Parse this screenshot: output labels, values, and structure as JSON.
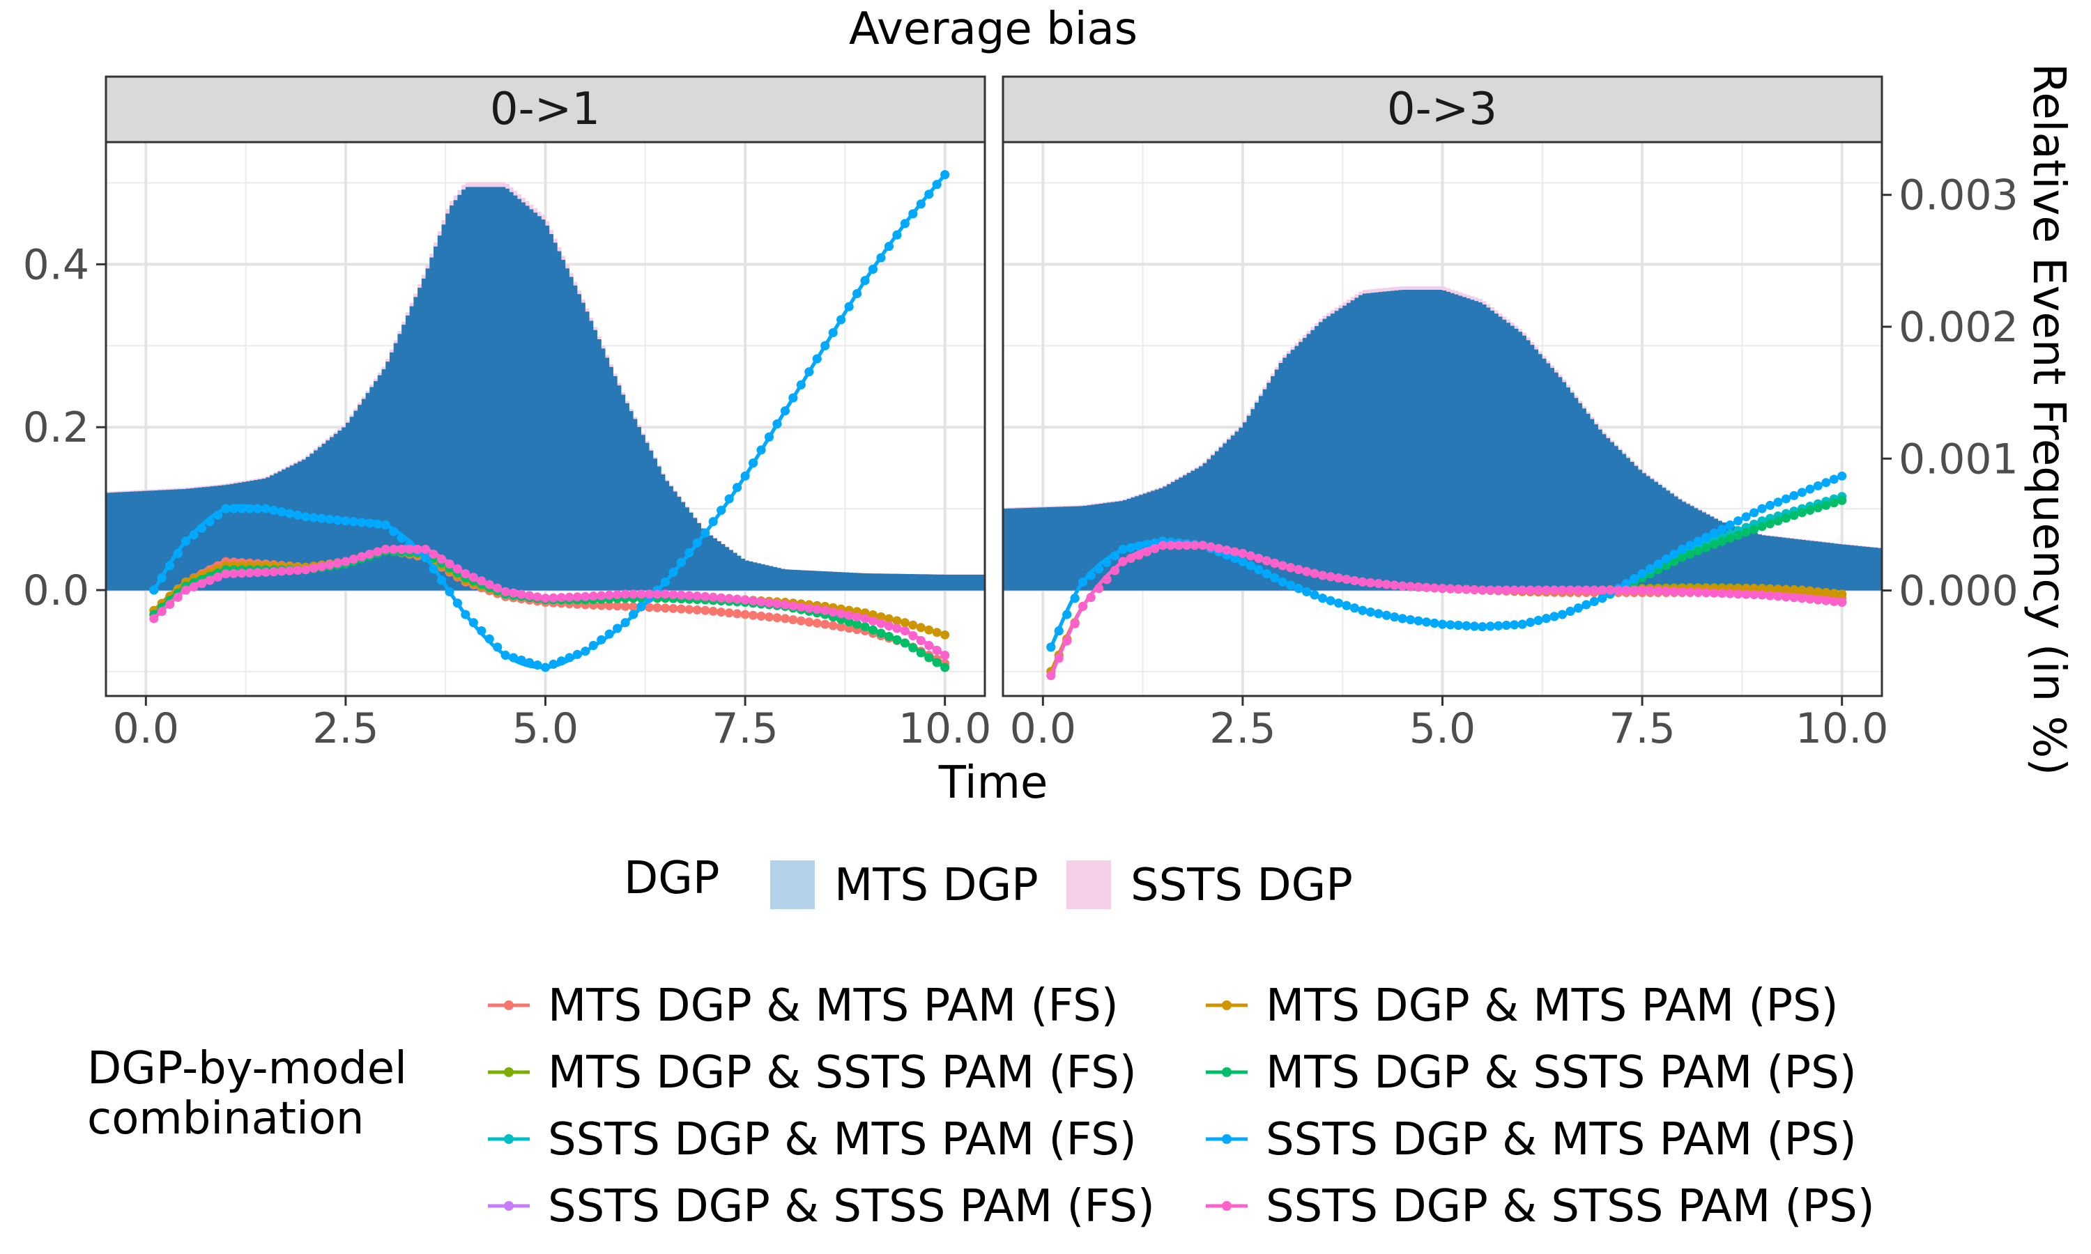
{
  "chart_data": {
    "type": "line",
    "title": "Average bias",
    "xlabel": "Time",
    "ylabel": "",
    "y2label": "Relative Event Frequency (in %)",
    "xlim": [
      -0.5,
      10.5
    ],
    "ylim": [
      -0.13,
      0.55
    ],
    "y2lim": [
      -0.0008,
      0.0034
    ],
    "x_ticks": [
      "0.0",
      "2.5",
      "5.0",
      "7.5",
      "10.0"
    ],
    "y_ticks": [
      "0.0",
      "0.2",
      "0.4"
    ],
    "y2_ticks": [
      "0.000",
      "0.001",
      "0.002",
      "0.003"
    ],
    "grid": true,
    "legend_position": "bottom",
    "x": [
      0.1,
      0.5,
      1.0,
      1.5,
      2.0,
      2.5,
      3.0,
      3.5,
      4.0,
      4.5,
      5.0,
      5.5,
      6.0,
      6.5,
      7.0,
      7.5,
      8.0,
      8.5,
      9.0,
      9.5,
      10.0
    ],
    "dgp_legend": {
      "title": "DGP",
      "items": [
        {
          "name": "MTS DGP",
          "color": "#2878b5"
        },
        {
          "name": "SSTS DGP",
          "color": "#f5cfe8"
        }
      ]
    },
    "series_legend": {
      "title_line1": "DGP-by-model",
      "title_line2": "combination"
    },
    "panels": [
      {
        "label": "0->1",
        "histogram": {
          "x": [
            -0.5,
            0.5,
            1.0,
            1.5,
            2.0,
            2.5,
            3.0,
            3.5,
            3.8,
            4.0,
            4.5,
            5.0,
            5.5,
            6.0,
            6.5,
            7.0,
            7.5,
            8.0,
            9.0,
            10.0,
            10.5
          ],
          "freq": [
            0.00074,
            0.00077,
            0.0008,
            0.00085,
            0.001,
            0.00125,
            0.0017,
            0.0024,
            0.0029,
            0.00306,
            0.00306,
            0.0028,
            0.00215,
            0.00145,
            0.00085,
            0.00045,
            0.00023,
            0.00016,
            0.00013,
            0.00012,
            0.00012
          ]
        },
        "series": [
          {
            "name": "MTS DGP & MTS PAM (FS)",
            "color": "#f8766d",
            "values": [
              -0.025,
              0.01,
              0.035,
              0.032,
              0.028,
              0.035,
              0.05,
              0.04,
              0.01,
              -0.008,
              -0.015,
              -0.018,
              -0.02,
              -0.022,
              -0.025,
              -0.03,
              -0.035,
              -0.042,
              -0.05,
              -0.065,
              -0.09
            ]
          },
          {
            "name": "MTS DGP & SSTS PAM (FS)",
            "color": "#7cae00",
            "values": [
              -0.03,
              0.005,
              0.025,
              0.025,
              0.025,
              0.032,
              0.048,
              0.045,
              0.015,
              -0.005,
              -0.012,
              -0.012,
              -0.01,
              -0.01,
              -0.012,
              -0.015,
              -0.02,
              -0.03,
              -0.045,
              -0.065,
              -0.095
            ]
          },
          {
            "name": "SSTS DGP & MTS PAM (FS)",
            "color": "#00bfc4",
            "values": [
              0.0,
              0.06,
              0.1,
              0.1,
              0.09,
              0.085,
              0.08,
              0.04,
              -0.03,
              -0.08,
              -0.095,
              -0.075,
              -0.04,
              0.01,
              0.07,
              0.14,
              0.22,
              0.3,
              0.38,
              0.45,
              0.51
            ]
          },
          {
            "name": "SSTS DGP & STSS PAM (FS)",
            "color": "#c77cff",
            "values": [
              -0.035,
              0.0,
              0.02,
              0.022,
              0.025,
              0.035,
              0.05,
              0.05,
              0.02,
              -0.002,
              -0.01,
              -0.008,
              -0.005,
              -0.005,
              -0.008,
              -0.012,
              -0.018,
              -0.025,
              -0.035,
              -0.05,
              -0.08
            ]
          },
          {
            "name": "MTS DGP & MTS PAM (PS)",
            "color": "#cd9600",
            "values": [
              -0.025,
              0.01,
              0.03,
              0.03,
              0.028,
              0.035,
              0.05,
              0.042,
              0.012,
              -0.005,
              -0.012,
              -0.012,
              -0.01,
              -0.01,
              -0.01,
              -0.012,
              -0.015,
              -0.02,
              -0.028,
              -0.04,
              -0.055
            ]
          },
          {
            "name": "MTS DGP & SSTS PAM (PS)",
            "color": "#00be67",
            "values": [
              -0.03,
              0.005,
              0.025,
              0.025,
              0.025,
              0.032,
              0.048,
              0.045,
              0.015,
              -0.005,
              -0.012,
              -0.012,
              -0.01,
              -0.01,
              -0.012,
              -0.015,
              -0.02,
              -0.03,
              -0.045,
              -0.065,
              -0.095
            ]
          },
          {
            "name": "SSTS DGP & MTS PAM (PS)",
            "color": "#00a9ff",
            "values": [
              0.0,
              0.06,
              0.1,
              0.1,
              0.09,
              0.085,
              0.08,
              0.04,
              -0.03,
              -0.08,
              -0.095,
              -0.075,
              -0.04,
              0.01,
              0.07,
              0.14,
              0.22,
              0.3,
              0.38,
              0.45,
              0.51
            ]
          },
          {
            "name": "SSTS DGP & STSS PAM (PS)",
            "color": "#ff61cc",
            "values": [
              -0.035,
              0.0,
              0.02,
              0.022,
              0.025,
              0.035,
              0.05,
              0.05,
              0.02,
              -0.002,
              -0.01,
              -0.008,
              -0.005,
              -0.005,
              -0.008,
              -0.012,
              -0.018,
              -0.025,
              -0.035,
              -0.05,
              -0.08
            ]
          }
        ]
      },
      {
        "label": "0->3",
        "histogram": {
          "x": [
            -0.5,
            0.5,
            1.0,
            1.5,
            2.0,
            2.5,
            3.0,
            3.5,
            4.0,
            4.5,
            5.0,
            5.5,
            6.0,
            6.5,
            7.0,
            7.5,
            8.0,
            8.5,
            9.0,
            10.0,
            10.5
          ],
          "freq": [
            0.00062,
            0.00064,
            0.00068,
            0.00078,
            0.00095,
            0.00125,
            0.00175,
            0.00205,
            0.00225,
            0.00228,
            0.00228,
            0.00218,
            0.00195,
            0.0016,
            0.0012,
            0.0009,
            0.00068,
            0.00052,
            0.00042,
            0.00035,
            0.00032
          ]
        },
        "series": [
          {
            "name": "MTS DGP & MTS PAM (FS)",
            "color": "#f8766d",
            "values": [
              -0.1,
              -0.02,
              0.035,
              0.055,
              0.055,
              0.045,
              0.03,
              0.018,
              0.01,
              0.005,
              0.002,
              0.0,
              -0.002,
              -0.003,
              -0.003,
              -0.003,
              -0.003,
              -0.003,
              -0.003,
              -0.005,
              -0.01
            ]
          },
          {
            "name": "MTS DGP & SSTS PAM (FS)",
            "color": "#7cae00",
            "values": [
              -0.1,
              -0.02,
              0.035,
              0.055,
              0.055,
              0.045,
              0.03,
              0.018,
              0.01,
              0.005,
              0.002,
              0.0,
              -0.001,
              -0.001,
              0.0,
              0.002,
              0.003,
              0.003,
              0.002,
              0.0,
              -0.005
            ]
          },
          {
            "name": "SSTS DGP & MTS PAM (FS)",
            "color": "#00bfc4",
            "values": [
              -0.07,
              0.01,
              0.05,
              0.06,
              0.055,
              0.035,
              0.01,
              -0.01,
              -0.025,
              -0.035,
              -0.042,
              -0.045,
              -0.042,
              -0.03,
              -0.01,
              0.02,
              0.045,
              0.065,
              0.085,
              0.1,
              0.115
            ]
          },
          {
            "name": "SSTS DGP & STSS PAM (FS)",
            "color": "#c77cff",
            "values": [
              -0.105,
              -0.02,
              0.035,
              0.055,
              0.055,
              0.045,
              0.03,
              0.018,
              0.01,
              0.005,
              0.002,
              0.0,
              0.0,
              0.0,
              0.0,
              0.0,
              -0.002,
              -0.004,
              -0.006,
              -0.01,
              -0.015
            ]
          },
          {
            "name": "MTS DGP & MTS PAM (PS)",
            "color": "#cd9600",
            "values": [
              -0.1,
              -0.02,
              0.035,
              0.055,
              0.055,
              0.045,
              0.03,
              0.018,
              0.01,
              0.005,
              0.002,
              0.0,
              -0.001,
              -0.001,
              0.0,
              0.001,
              0.002,
              0.002,
              0.002,
              0.0,
              -0.005
            ]
          },
          {
            "name": "MTS DGP & SSTS PAM (PS)",
            "color": "#00be67",
            "values": [
              -0.07,
              0.01,
              0.05,
              0.06,
              0.055,
              0.035,
              0.01,
              -0.01,
              -0.025,
              -0.035,
              -0.042,
              -0.045,
              -0.042,
              -0.03,
              -0.01,
              0.015,
              0.04,
              0.06,
              0.078,
              0.095,
              0.11
            ]
          },
          {
            "name": "SSTS DGP & MTS PAM (PS)",
            "color": "#00a9ff",
            "values": [
              -0.07,
              0.01,
              0.05,
              0.06,
              0.055,
              0.035,
              0.01,
              -0.01,
              -0.025,
              -0.035,
              -0.042,
              -0.045,
              -0.042,
              -0.03,
              -0.01,
              0.02,
              0.05,
              0.075,
              0.1,
              0.12,
              0.14
            ]
          },
          {
            "name": "SSTS DGP & STSS PAM (PS)",
            "color": "#ff61cc",
            "values": [
              -0.105,
              -0.02,
              0.035,
              0.055,
              0.055,
              0.045,
              0.03,
              0.018,
              0.01,
              0.005,
              0.002,
              0.0,
              0.0,
              0.0,
              0.0,
              0.0,
              -0.002,
              -0.004,
              -0.006,
              -0.01,
              -0.015
            ]
          }
        ]
      }
    ]
  }
}
